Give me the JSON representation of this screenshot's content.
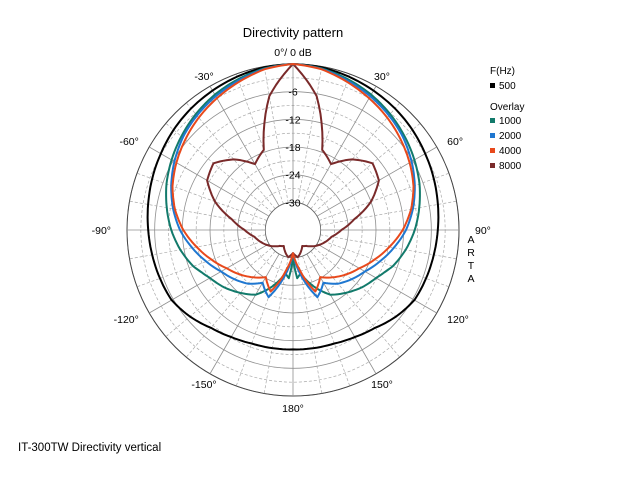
{
  "chart_data": {
    "type": "polar",
    "title": "Directivity pattern",
    "top_label": "0°/ 0 dB",
    "radial_ticks": [
      "-6",
      "-12",
      "-18",
      "-24",
      "-30"
    ],
    "angle_labels": [
      "0°",
      "30°",
      "60°",
      "90°",
      "120°",
      "150°",
      "180°",
      "-150°",
      "-120°",
      "-90°",
      "-60°",
      "-30°"
    ],
    "range_db": [
      -36,
      0
    ],
    "grid": true,
    "watermark": "ARTA",
    "legend": {
      "placement": "right",
      "header": "F(Hz)",
      "main_entry": "500",
      "overlay_header": "Overlay",
      "overlay_entries": [
        "1000",
        "2000",
        "4000",
        "8000"
      ]
    },
    "colors": {
      "500": "#000000",
      "1000": "#127a6b",
      "2000": "#1f77d0",
      "4000": "#e8491c",
      "8000": "#7a2a2a"
    },
    "series": [
      {
        "name": "500",
        "angles": [
          0,
          10,
          20,
          30,
          40,
          50,
          60,
          70,
          80,
          90,
          100,
          110,
          120,
          130,
          140,
          150,
          160,
          170,
          180,
          190,
          200,
          210,
          220,
          230,
          240,
          250,
          260,
          270,
          280,
          290,
          300,
          310,
          320,
          330,
          340,
          350
        ],
        "db": [
          0,
          -0.2,
          -0.6,
          -1.1,
          -1.6,
          -2.2,
          -2.9,
          -3.5,
          -4.1,
          -4.6,
          -5.0,
          -5.3,
          -5.6,
          -6.8,
          -8.3,
          -9.2,
          -9.8,
          -10.0,
          -10.1,
          -10.0,
          -9.8,
          -9.2,
          -8.3,
          -6.8,
          -5.6,
          -5.3,
          -5.0,
          -4.6,
          -4.1,
          -3.5,
          -2.9,
          -2.2,
          -1.6,
          -1.1,
          -0.6,
          -0.2
        ]
      },
      {
        "name": "1000",
        "angles": [
          0,
          10,
          20,
          30,
          40,
          50,
          60,
          70,
          80,
          90,
          100,
          110,
          115,
          120,
          130,
          140,
          150,
          160,
          170,
          175,
          180,
          185,
          190,
          200,
          210,
          220,
          230,
          240,
          245,
          250,
          260,
          270,
          280,
          290,
          300,
          310,
          320,
          330,
          340,
          350
        ],
        "db": [
          0,
          -0.4,
          -1.2,
          -2.1,
          -3.2,
          -4.4,
          -5.6,
          -6.8,
          -8.2,
          -9.6,
          -11.2,
          -13.0,
          -14.2,
          -15.2,
          -16.6,
          -18.2,
          -19.8,
          -23.0,
          -26.5,
          -25.5,
          -30,
          -25.5,
          -26.5,
          -23.0,
          -19.8,
          -18.2,
          -16.6,
          -15.2,
          -14.2,
          -13.0,
          -11.2,
          -9.6,
          -8.2,
          -6.8,
          -5.6,
          -4.4,
          -3.2,
          -2.1,
          -1.2,
          -0.4
        ]
      },
      {
        "name": "2000",
        "angles": [
          0,
          10,
          20,
          30,
          40,
          50,
          60,
          70,
          80,
          90,
          100,
          110,
          120,
          130,
          140,
          150,
          160,
          170,
          180,
          190,
          200,
          210,
          220,
          230,
          240,
          250,
          260,
          270,
          280,
          290,
          300,
          310,
          320,
          330,
          340,
          350
        ],
        "db": [
          0,
          -0.5,
          -1.5,
          -2.5,
          -3.6,
          -4.8,
          -6.3,
          -7.9,
          -9.6,
          -11.5,
          -13.8,
          -16.0,
          -18.0,
          -19.4,
          -20.8,
          -22.8,
          -20.5,
          -26.0,
          -31,
          -26.0,
          -20.5,
          -22.8,
          -20.8,
          -19.4,
          -18.0,
          -16.0,
          -13.8,
          -11.5,
          -9.6,
          -7.9,
          -6.3,
          -4.8,
          -3.6,
          -2.5,
          -1.5,
          -0.5
        ]
      },
      {
        "name": "4000",
        "angles": [
          0,
          10,
          20,
          30,
          40,
          50,
          60,
          70,
          80,
          90,
          100,
          110,
          120,
          130,
          140,
          150,
          160,
          170,
          180,
          190,
          200,
          210,
          220,
          230,
          240,
          250,
          260,
          270,
          280,
          290,
          300,
          310,
          320,
          330,
          340,
          350
        ],
        "db": [
          0,
          -0.6,
          -1.8,
          -3.0,
          -4.2,
          -5.5,
          -6.8,
          -8.2,
          -10.0,
          -12.2,
          -14.8,
          -17.2,
          -19.4,
          -21.0,
          -22.6,
          -24.2,
          -21.8,
          -27.0,
          -31,
          -27.0,
          -21.8,
          -24.2,
          -22.6,
          -21.0,
          -19.4,
          -17.2,
          -14.8,
          -12.2,
          -10.0,
          -8.2,
          -6.8,
          -5.5,
          -4.2,
          -3.0,
          -1.8,
          -0.6
        ]
      },
      {
        "name": "8000",
        "angles": [
          0,
          10,
          20,
          30,
          40,
          50,
          60,
          70,
          80,
          90,
          100,
          110,
          120,
          130,
          140,
          150,
          160,
          170,
          180,
          190,
          200,
          210,
          220,
          230,
          240,
          250,
          260,
          270,
          280,
          290,
          300,
          310,
          320,
          330,
          340,
          350
        ],
        "db": [
          0,
          -6.5,
          -17.5,
          -19.5,
          -16.0,
          -13.5,
          -14.5,
          -18.0,
          -22.5,
          -25.5,
          -27.5,
          -28.5,
          -29.5,
          -30.5,
          -31.5,
          -32,
          -31,
          -30,
          -31,
          -30,
          -31,
          -32,
          -31.5,
          -30.5,
          -29.5,
          -28.5,
          -27.5,
          -25.5,
          -22.5,
          -18.0,
          -14.5,
          -13.5,
          -16.0,
          -19.5,
          -17.5,
          -6.5
        ]
      }
    ]
  },
  "caption": "IT-300TW  Directivity vertical"
}
